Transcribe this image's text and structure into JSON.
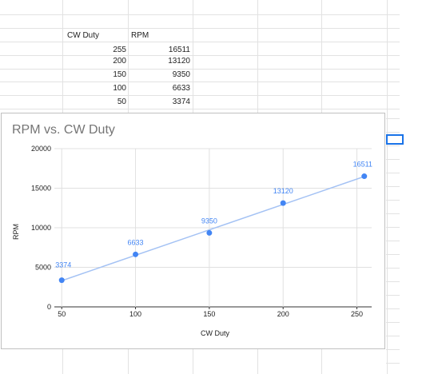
{
  "sheet": {
    "headers": [
      "CW Duty",
      "RPM"
    ],
    "rows": [
      [
        "255",
        "16511"
      ],
      [
        "200",
        "13120"
      ],
      [
        "150",
        "9350"
      ],
      [
        "100",
        "6633"
      ],
      [
        "50",
        "3374"
      ]
    ]
  },
  "chart_data": {
    "type": "scatter",
    "title": "RPM vs. CW Duty",
    "xlabel": "CW Duty",
    "ylabel": "RPM",
    "xlim": [
      45,
      260
    ],
    "ylim": [
      0,
      20000
    ],
    "x_ticks": [
      50,
      100,
      150,
      200,
      250
    ],
    "y_ticks": [
      0,
      5000,
      10000,
      15000,
      20000
    ],
    "trendline": "linear",
    "grid": true,
    "legend": "none",
    "colors": {
      "point": "#4285f4",
      "trendline": "#a4c2f4",
      "label": "#4285f4"
    },
    "series": [
      {
        "x": [
          50,
          100,
          150,
          200,
          255
        ],
        "y": [
          3374,
          6633,
          9350,
          13120,
          16511
        ],
        "labels": [
          "3374",
          "6633",
          "9350",
          "13120",
          "16511"
        ]
      }
    ]
  }
}
